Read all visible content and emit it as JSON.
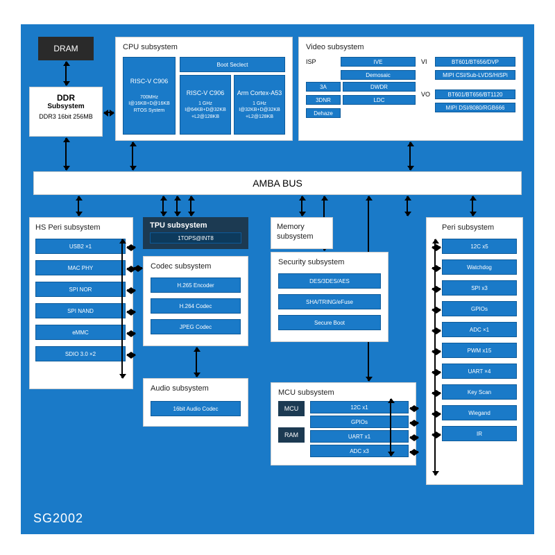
{
  "chipName": "SG2002",
  "dram": "DRAM",
  "ddr": {
    "t": "DDR",
    "s": "Subsystem",
    "d": "DDR3 16bit 256MB"
  },
  "cpu": {
    "t": "CPU subsystem",
    "c906": "RISC-V C906",
    "c906d": "700MHz\nI@16KB+D@16KB\nRTOS System",
    "boot": "Boot Seclect",
    "b1": "RISC-V C906",
    "b1d": "1 GHz\nI@64KB+D@32KB\n+L2@128KB",
    "b2": "Arm Cortex-A53",
    "b2d": "1 GHz\nI@32KB+D@32KB\n+L2@128KB"
  },
  "video": {
    "t": "Video subsystem",
    "isp": "ISP",
    "g": [
      "IVE",
      "Demosaic",
      "3A",
      "DWDR",
      "3DNR",
      "LDC",
      "Dehaze",
      ""
    ],
    "gL": [
      "3A",
      "3DNR",
      "Dehaze"
    ],
    "gR": [
      "IVE",
      "Demosaic",
      "DWDR",
      "LDC"
    ],
    "vi": "VI",
    "viL": [
      "BT601/BT656/DVP",
      "MIPI CSI/Sub-LVDS/HiSPi"
    ],
    "vo": "VO",
    "voL": [
      "BT601/BT656/BT1120",
      "MIPI DSI/8080/RGB666"
    ]
  },
  "bus": "AMBA BUS",
  "hs": {
    "t": "HS Peri subsystem",
    "i": [
      "USB2 ×1",
      "MAC PHY",
      "SPI NOR",
      "SPI NAND",
      "eMMC",
      "SDIO 3.0 ×2"
    ]
  },
  "tpu": {
    "t": "TPU subsystem",
    "d": "1TOPS@INT8"
  },
  "codec": {
    "t": "Codec subsystem",
    "i": [
      "H.265 Encoder",
      "H.264 Codec",
      "JPEG Codec"
    ]
  },
  "audio": {
    "t": "Audio subsystem",
    "d": "16bit Audio Codec"
  },
  "mem": {
    "t": "Memory\nsubsystem"
  },
  "sec": {
    "t": "Security subsystem",
    "i": [
      "DES/3DES/AES",
      "SHA/TRING/eFuse",
      "Secure Boot"
    ]
  },
  "mcu": {
    "t": "MCU subsystem",
    "m": "MCU",
    "r": "RAM",
    "i": [
      "12C x1",
      "GPIOs",
      "UART x1",
      "ADC x3"
    ]
  },
  "peri": {
    "t": "Peri subsystem",
    "i": [
      "12C x5",
      "Watchdog",
      "SPI x3",
      "GPIOs",
      "ADC ×1",
      "PWM x15",
      "UART ×4",
      "Key Scan",
      "Wiegand",
      "IR"
    ]
  },
  "c": {
    "bg": "#1a7ac8",
    "panel": "#ffffff",
    "dark": "#1c3a52",
    "black": "#2a2a2a",
    "txt": "#ffffff"
  }
}
